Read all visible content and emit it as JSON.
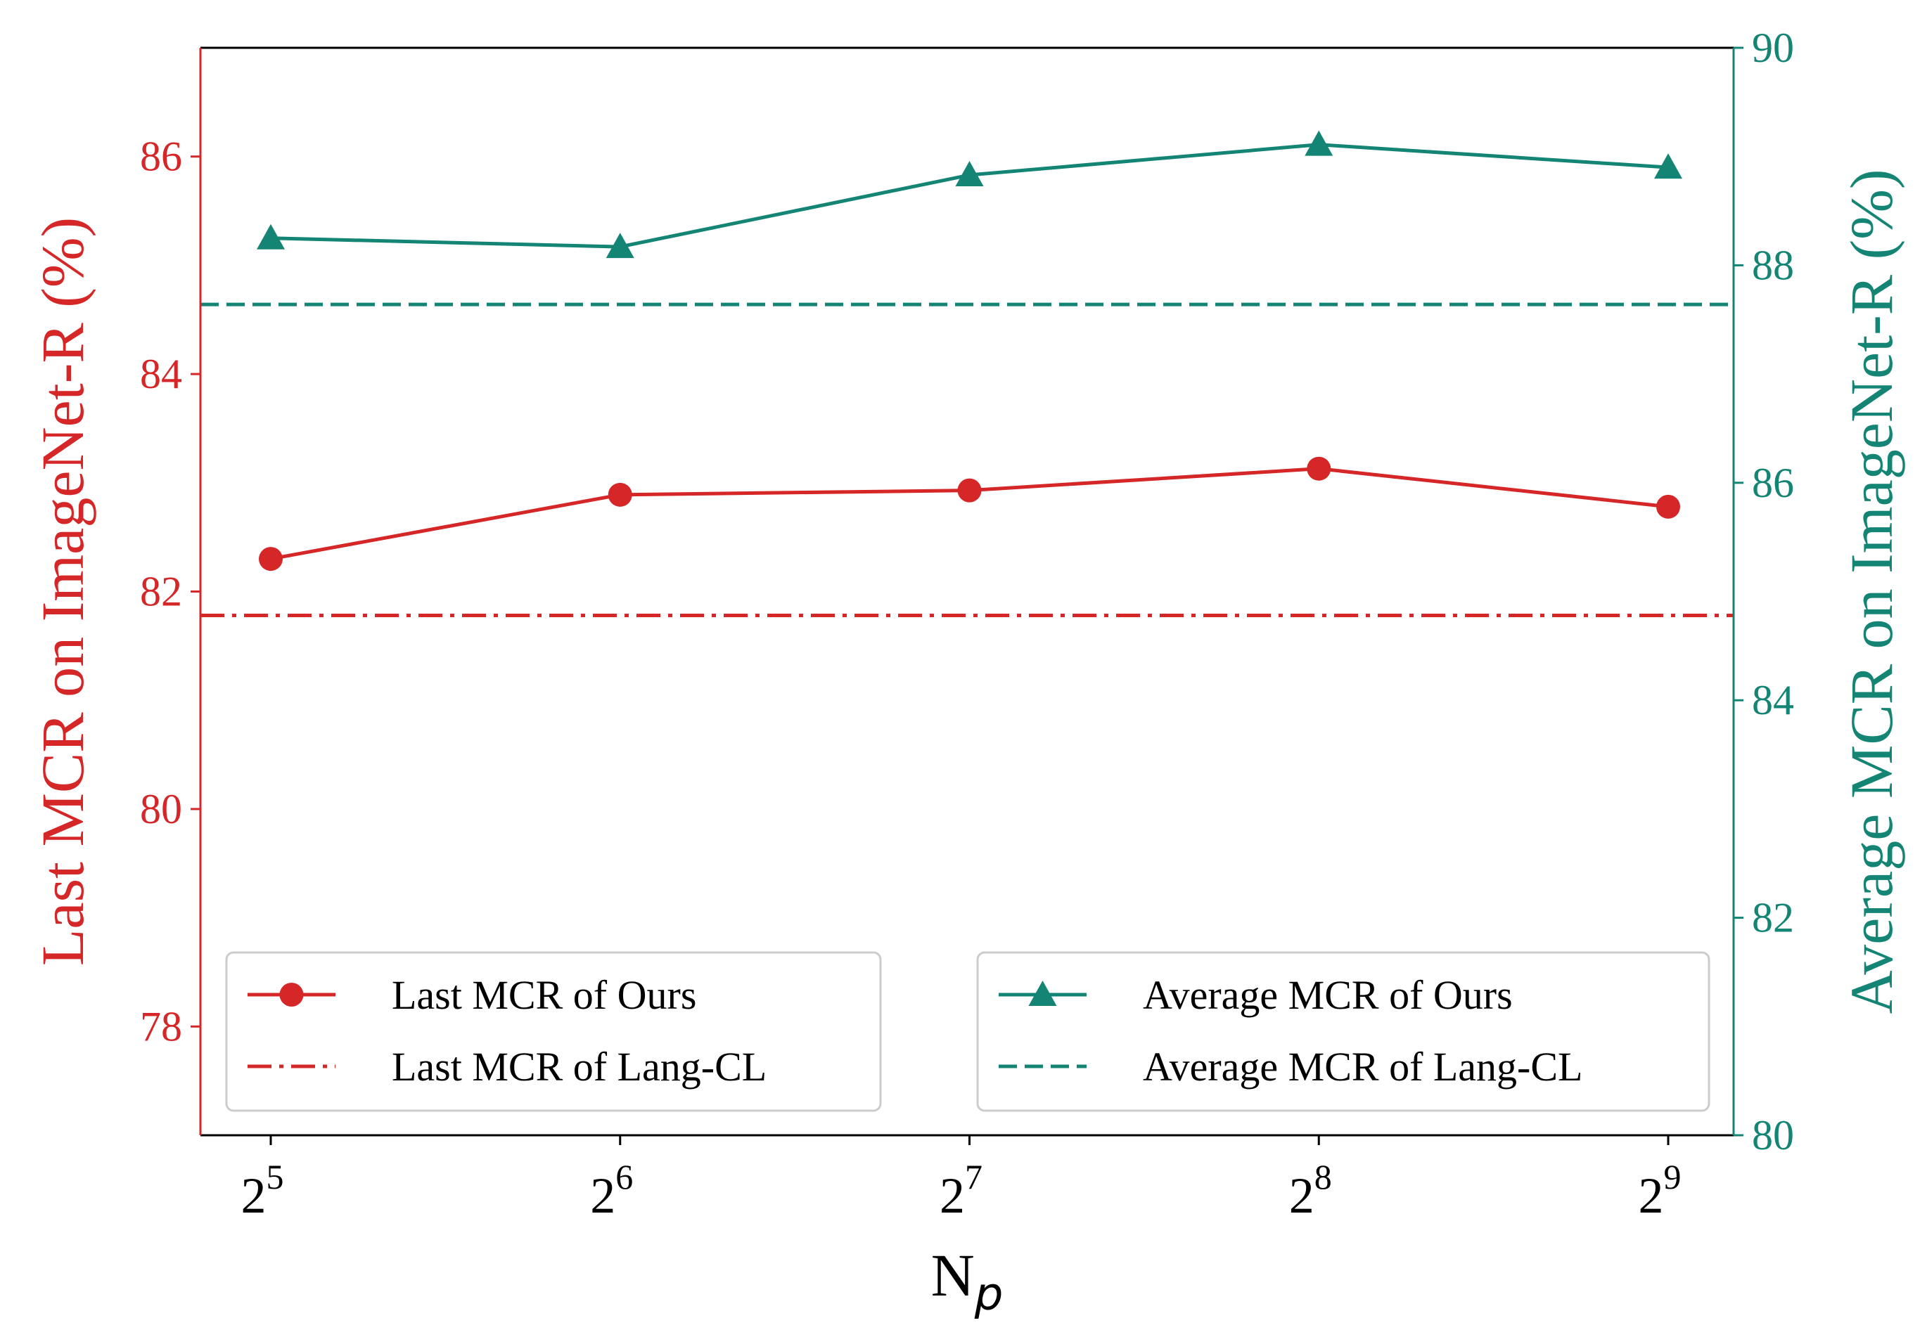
{
  "chart_data": {
    "type": "line",
    "title": "",
    "xlabel": {
      "base": "N",
      "sub": "p"
    },
    "categories": [
      {
        "base": "2",
        "exp": "5"
      },
      {
        "base": "2",
        "exp": "6"
      },
      {
        "base": "2",
        "exp": "7"
      },
      {
        "base": "2",
        "exp": "8"
      },
      {
        "base": "2",
        "exp": "9"
      }
    ],
    "y_left": {
      "label": "Last MCR on ImageNet-R (%)",
      "ylim": [
        77,
        87
      ],
      "ticks": [
        78,
        80,
        82,
        84,
        86
      ],
      "color": "#d62728"
    },
    "y_right": {
      "label": "Average MCR on ImageNet-R (%)",
      "ylim": [
        80,
        90
      ],
      "ticks": [
        80,
        82,
        84,
        86,
        88,
        90
      ],
      "color": "#148575"
    },
    "series": [
      {
        "name": "Last MCR of Ours",
        "axis": "left",
        "values": [
          82.3,
          82.89,
          82.93,
          83.13,
          82.78
        ],
        "color": "#d62728",
        "marker": "circle",
        "line": "solid"
      },
      {
        "name": "Last MCR of Lang-CL",
        "axis": "left",
        "values": [
          81.78,
          81.78,
          81.78,
          81.78,
          81.78
        ],
        "color": "#d62728",
        "marker": "none",
        "line": "dashdot",
        "full_width": true
      },
      {
        "name": "Average MCR of Ours",
        "axis": "right",
        "values": [
          88.25,
          88.17,
          88.83,
          89.11,
          88.9
        ],
        "color": "#148575",
        "marker": "triangle",
        "line": "solid"
      },
      {
        "name": "Average MCR of Lang-CL",
        "axis": "right",
        "values": [
          87.64,
          87.64,
          87.64,
          87.64,
          87.64
        ],
        "color": "#148575",
        "marker": "none",
        "line": "dashed",
        "full_width": true
      }
    ],
    "legends": [
      {
        "location": "lower-left",
        "entries": [
          "Last MCR of Ours",
          "Last MCR of Lang-CL"
        ]
      },
      {
        "location": "lower-right",
        "entries": [
          "Average MCR of Ours",
          "Average MCR of Lang-CL"
        ]
      }
    ]
  }
}
